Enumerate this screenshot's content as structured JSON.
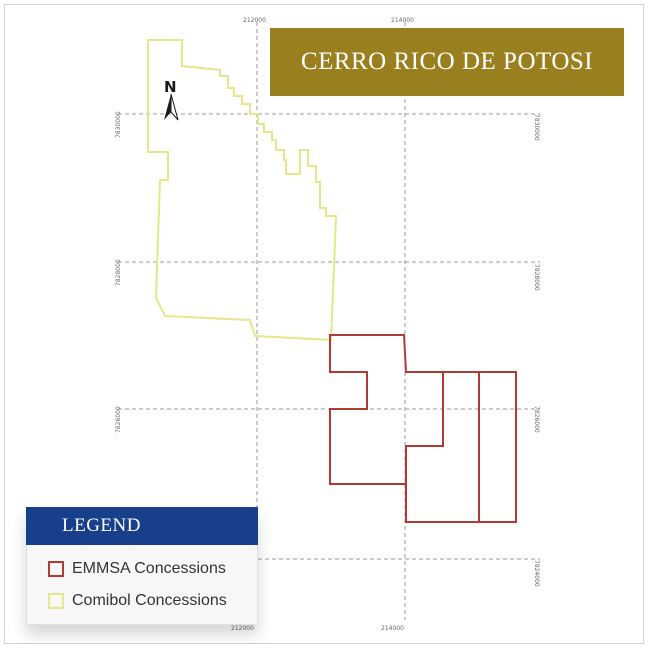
{
  "title": "CERRO RICO DE POTOSI",
  "north_label": "N",
  "legend": {
    "title": "LEGEND",
    "items": [
      {
        "label": "EMMSA Concessions",
        "color": "#b23a35"
      },
      {
        "label": "Comibol Concessions",
        "color": "#e6e68a"
      }
    ]
  },
  "grid_labels": {
    "x_top": [
      "212000",
      "214000"
    ],
    "x_bottom": [
      "212000",
      "214000"
    ],
    "y_left": [
      "7830000",
      "7828000",
      "7826000"
    ],
    "y_right": [
      "7830000",
      "7828000",
      "7826000",
      "7824000"
    ]
  },
  "colors": {
    "banner": "#9a7f1f",
    "legend_header": "#173f8c",
    "emmsa": "#b23a35",
    "comibol": "#e6e68a",
    "grid": "#9a9a9a"
  }
}
